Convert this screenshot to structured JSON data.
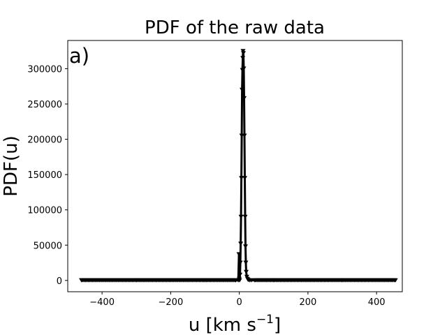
{
  "chart_data": {
    "type": "line",
    "title": "PDF of the raw data",
    "panel_label": "a)",
    "xlabel": "u [km s",
    "xlabel_sup": "−1",
    "xlabel_end": "]",
    "ylabel": "PDF(u)",
    "xlim": [
      -500,
      475
    ],
    "ylim": [
      -16000,
      340000
    ],
    "xticks": [
      -400,
      -200,
      0,
      200,
      400
    ],
    "xtick_labels": [
      "−400",
      "−200",
      "0",
      "200",
      "400"
    ],
    "yticks": [
      0,
      50000,
      100000,
      150000,
      200000,
      250000,
      300000
    ],
    "ytick_labels": [
      "0",
      "50000",
      "100000",
      "150000",
      "200000",
      "250000",
      "300000"
    ],
    "grid": false,
    "marker": "triangle-down",
    "line_color": "#000000",
    "series": [
      {
        "x": [
          -460,
          -300,
          -100,
          -10,
          -3,
          -1,
          0,
          1,
          2,
          3,
          4,
          5,
          6,
          7,
          8,
          9,
          10,
          11,
          12,
          13,
          14,
          15,
          16,
          17,
          18,
          19,
          20,
          22,
          24,
          26,
          30,
          35,
          45,
          100,
          300,
          455
        ],
        "y": [
          0,
          0,
          0,
          0,
          0,
          37000,
          2000,
          0,
          8000,
          25000,
          52000,
          90000,
          145000,
          205000,
          270000,
          298000,
          315000,
          325000,
          322000,
          300000,
          258000,
          205000,
          145000,
          90000,
          48000,
          25000,
          12000,
          5000,
          2000,
          500,
          0,
          0,
          0,
          0,
          0,
          0
        ]
      }
    ]
  }
}
